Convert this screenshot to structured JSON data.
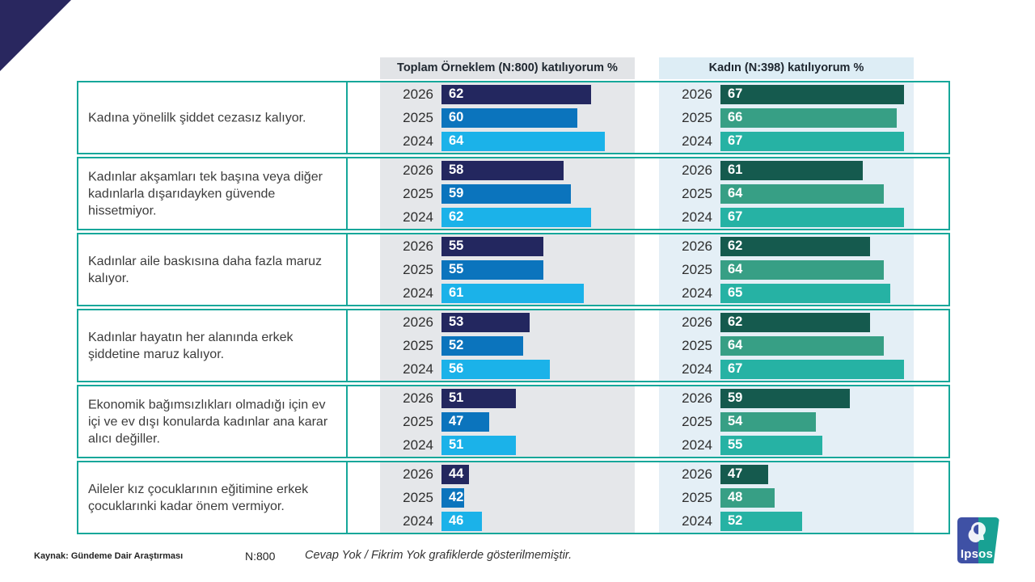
{
  "footer": {
    "source": "Kaynak: Gündeme Dair Araştırması",
    "n": "N:800",
    "note": "Cevap Yok / Fikrim Yok grafiklerde gösterilmemiştir."
  },
  "logo": {
    "text": "Ipsos"
  },
  "colors": {
    "accent_border": "#16a79a",
    "corner_triangle": "#29275f",
    "total_2026": "#23275f",
    "total_2025": "#0b74bd",
    "total_2024": "#1bb2e9",
    "kadin_2026": "#155a4e",
    "kadin_2025": "#379f85",
    "kadin_2024": "#26b2a4",
    "panel_total_bg": "#e5e7ea",
    "panel_kadin_bg": "#e4eff6"
  },
  "chart_data": {
    "type": "bar",
    "orientation": "horizontal",
    "value_unit": "% katılıyorum",
    "years": [
      "2026",
      "2025",
      "2024"
    ],
    "columns": [
      {
        "id": "total",
        "label": "Toplam Örneklem (N:800)  katılıyorum %"
      },
      {
        "id": "kadin",
        "label": "Kadın (N:398) katılıyorum %"
      }
    ],
    "rows": [
      {
        "statement": "Kadına yönelilk şiddet cezasız kalıyor.",
        "total": [
          62,
          60,
          64
        ],
        "kadin": [
          67,
          66,
          67
        ]
      },
      {
        "statement": "Kadınlar akşamları tek başına veya diğer kadınlarla dışarıdayken güvende hissetmiyor.",
        "total": [
          58,
          59,
          62
        ],
        "kadin": [
          61,
          64,
          67
        ]
      },
      {
        "statement": "Kadınlar aile baskısına daha fazla maruz kalıyor.",
        "total": [
          55,
          55,
          61
        ],
        "kadin": [
          62,
          64,
          65
        ]
      },
      {
        "statement": "Kadınlar hayatın her alanında erkek şiddetine maruz kalıyor.",
        "total": [
          53,
          52,
          56
        ],
        "kadin": [
          62,
          64,
          67
        ]
      },
      {
        "statement": "Ekonomik bağımsızlıkları olmadığı için ev içi ve ev dışı konularda kadınlar ana karar alıcı değiller.",
        "total": [
          51,
          47,
          51
        ],
        "kadin": [
          59,
          54,
          55
        ]
      },
      {
        "statement": "Aileler kız çocuklarının eğitimine erkek çocuklarınki kadar önem vermiyor.",
        "total": [
          44,
          42,
          46
        ],
        "kadin": [
          47,
          48,
          52
        ]
      }
    ],
    "axis": {
      "min": 40,
      "max": 78,
      "gridlines": false,
      "value_labels": "inside-bar-left"
    }
  }
}
